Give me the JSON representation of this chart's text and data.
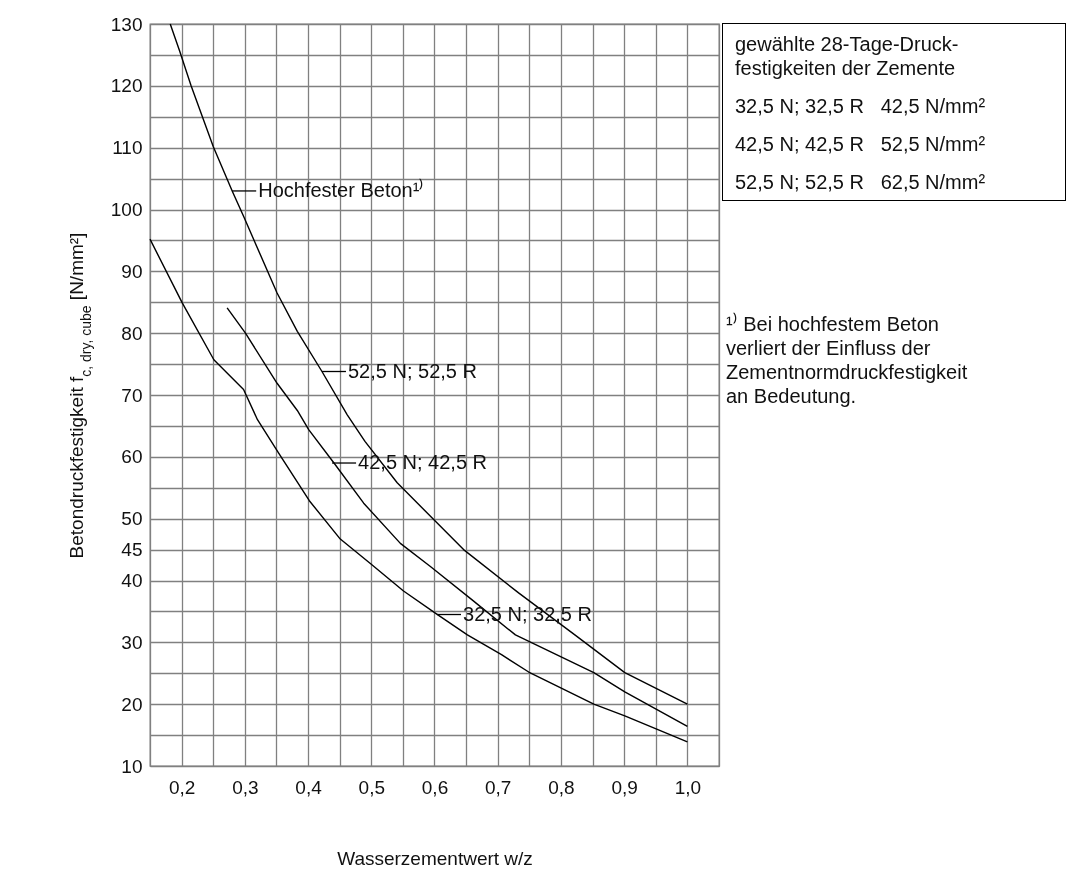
{
  "chart_data": {
    "type": "line",
    "xlabel": "Wasserzementwert w/z",
    "ylabel": "Betondruckfestigkeit f$_{c, dry, cube}$ [N/mm²]",
    "xlim": [
      0.15,
      1.05
    ],
    "ylim": [
      10,
      130
    ],
    "xticks": [
      {
        "value": 0.15,
        "label": null
      },
      {
        "value": 0.2,
        "label": "0,2"
      },
      {
        "value": 0.25,
        "label": null
      },
      {
        "value": 0.3,
        "label": "0,3"
      },
      {
        "value": 0.35,
        "label": null
      },
      {
        "value": 0.4,
        "label": "0,4"
      },
      {
        "value": 0.45,
        "label": null
      },
      {
        "value": 0.5,
        "label": "0,5"
      },
      {
        "value": 0.55,
        "label": null
      },
      {
        "value": 0.6,
        "label": "0,6"
      },
      {
        "value": 0.65,
        "label": null
      },
      {
        "value": 0.7,
        "label": "0,7"
      },
      {
        "value": 0.75,
        "label": null
      },
      {
        "value": 0.8,
        "label": "0,8"
      },
      {
        "value": 0.85,
        "label": null
      },
      {
        "value": 0.9,
        "label": "0,9"
      },
      {
        "value": 0.95,
        "label": null
      },
      {
        "value": 1.0,
        "label": "1,0"
      },
      {
        "value": 1.05,
        "label": null
      }
    ],
    "yticks": [
      10,
      {
        "value": 15,
        "label": null
      },
      20,
      {
        "value": 25,
        "label": null
      },
      30,
      {
        "value": 35,
        "label": null
      },
      40,
      45,
      50,
      {
        "value": 55,
        "label": null
      },
      60,
      {
        "value": 65,
        "label": null
      },
      70,
      {
        "value": 75,
        "label": null
      },
      80,
      {
        "value": 85,
        "label": null
      },
      90,
      {
        "value": 95,
        "label": null
      },
      100,
      {
        "value": 105,
        "label": null
      },
      110,
      {
        "value": 115,
        "label": null
      },
      120,
      {
        "value": 125,
        "label": null
      },
      130
    ],
    "grid": true,
    "series": [
      {
        "color": "#000000",
        "x": [
          0.182,
          0.197,
          0.215,
          0.25,
          0.28,
          0.298,
          0.351,
          0.383,
          0.422,
          0.462,
          0.49,
          0.541,
          0.646,
          0.733,
          0.822,
          0.901,
          1.0
        ],
        "values": [
          130,
          125.6,
          120,
          110.2,
          103,
          98.9,
          86.5,
          80.3,
          73.8,
          66.8,
          62.5,
          55.8,
          45,
          38,
          31.2,
          25.1,
          20
        ]
      },
      {
        "color": "#000000",
        "x": [
          0.272,
          0.301,
          0.351,
          0.383,
          0.401,
          0.441,
          0.488,
          0.546,
          0.593,
          0.659,
          0.728,
          0.852,
          0.901,
          1.0
        ],
        "values": [
          84.1,
          80,
          71.9,
          67.5,
          64.4,
          59,
          52.5,
          46,
          42.3,
          36.9,
          31.2,
          25.1,
          22,
          16.4
        ]
      },
      {
        "color": "#000000",
        "x": [
          0.15,
          0.201,
          0.251,
          0.298,
          0.32,
          0.353,
          0.402,
          0.451,
          0.499,
          0.551,
          0.603,
          0.652,
          0.706,
          0.749,
          0.852,
          0.901,
          1.0
        ],
        "values": [
          95.2,
          84.9,
          75.7,
          70.9,
          66,
          60.7,
          52.9,
          46.7,
          42.7,
          38.3,
          34.6,
          31.2,
          28,
          25.2,
          20,
          18.1,
          13.9
        ]
      }
    ],
    "annotations": [
      {
        "text": "Hochfester Beton¹⁾",
        "x": 0.28,
        "y": 103
      },
      {
        "text": "52,5 N; 52,5 R",
        "x": 0.422,
        "y": 73.8
      },
      {
        "text": "42,5 N; 42,5 R",
        "x": 0.438,
        "y": 59
      },
      {
        "text": "32,5 N; 32,5 R",
        "x": 0.604,
        "y": 34.5
      },
      "gewählte 28-Tage-Druck-\nfestigkeiten der Zemente",
      "32,5 N; 32,5 R   42,5 N/mm²",
      "42,5 N; 42,5 R   52,5 N/mm²",
      "52,5 N; 52,5 R   62,5 N/mm²",
      "¹⁾ Bei hochfestem Beton\nverliert der Einfluss der\nZementnormdruckfestigkeit\nan Bedeutung."
    ]
  }
}
